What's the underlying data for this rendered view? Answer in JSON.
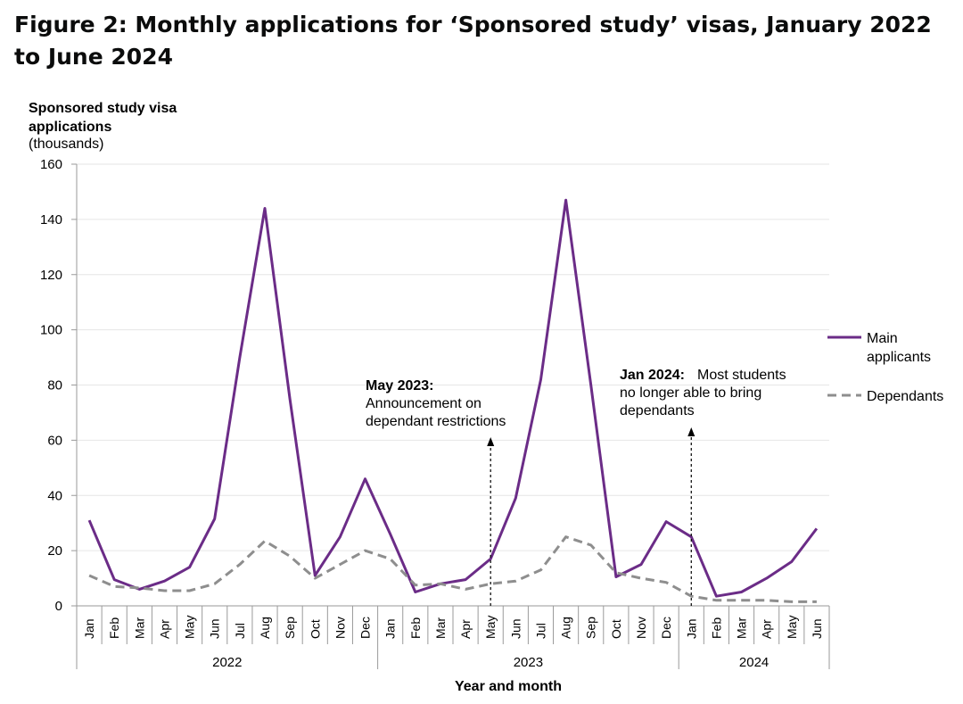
{
  "title": "Figure 2: Monthly applications for ‘Sponsored study’ visas, January 2022 to June 2024",
  "chart_data": {
    "type": "line",
    "ylabel_line1": "Sponsored study visa",
    "ylabel_line2": "applications",
    "ylabel_line3": "(thousands)",
    "xlabel": "Year and month",
    "ylim": [
      0,
      160
    ],
    "yticks": [
      0,
      20,
      40,
      60,
      80,
      100,
      120,
      140,
      160
    ],
    "grid": "horizontal",
    "legend_position": "right",
    "categories": [
      "Jan",
      "Feb",
      "Mar",
      "Apr",
      "May",
      "Jun",
      "Jul",
      "Aug",
      "Sep",
      "Oct",
      "Nov",
      "Dec",
      "Jan",
      "Feb",
      "Mar",
      "Apr",
      "May",
      "Jun",
      "Jul",
      "Aug",
      "Sep",
      "Oct",
      "Nov",
      "Dec",
      "Jan",
      "Feb",
      "Mar",
      "Apr",
      "May",
      "Jun"
    ],
    "years": [
      {
        "label": "2022",
        "start": 0,
        "end": 12
      },
      {
        "label": "2023",
        "start": 12,
        "end": 24
      },
      {
        "label": "2024",
        "start": 24,
        "end": 30
      }
    ],
    "series": [
      {
        "name": "Main applicants",
        "color": "#6b2c87",
        "style": "solid",
        "values": [
          31,
          9.5,
          6,
          9,
          14,
          31.5,
          90,
          144,
          75,
          11,
          25,
          46,
          26,
          5,
          8,
          9.5,
          17,
          39,
          82,
          147,
          80,
          10.5,
          15,
          30.5,
          25,
          3.5,
          5,
          10,
          16,
          28
        ]
      },
      {
        "name": "Dependants",
        "color": "#8e8e8e",
        "style": "dashed",
        "values": [
          11,
          7,
          6.5,
          5.5,
          5.5,
          8,
          15,
          23.5,
          18,
          10,
          15,
          20,
          17,
          7.5,
          8,
          6,
          8,
          9,
          13,
          25,
          22,
          12,
          10,
          8.5,
          3.5,
          2,
          2,
          2,
          1.5,
          1.5
        ]
      }
    ],
    "annotations": [
      {
        "id": "may2023",
        "index": 16,
        "bold": "May 2023:",
        "line1": "Announcement on",
        "line2": "dependant restrictions"
      },
      {
        "id": "jan2024",
        "index": 24,
        "bold": "Jan 2024:",
        "line1": "Most students",
        "line2": "no longer able to bring",
        "line3": "dependants"
      }
    ]
  }
}
